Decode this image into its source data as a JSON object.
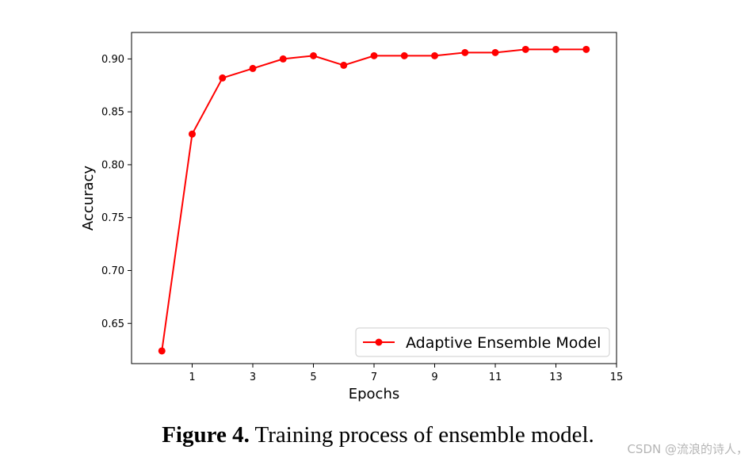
{
  "chart_data": {
    "type": "line",
    "xlabel": "Epochs",
    "ylabel": "Accuracy",
    "xlim": [
      -1,
      15
    ],
    "ylim": [
      0.612,
      0.925
    ],
    "xticks": [
      1,
      3,
      5,
      7,
      9,
      11,
      13,
      15
    ],
    "xtick_labels": [
      "1",
      "3",
      "5",
      "7",
      "9",
      "11",
      "13",
      "15"
    ],
    "yticks": [
      0.65,
      0.7,
      0.75,
      0.8,
      0.85,
      0.9
    ],
    "ytick_labels": [
      "0.65",
      "0.70",
      "0.75",
      "0.80",
      "0.85",
      "0.90"
    ],
    "grid": false,
    "legend_position": "lower-right",
    "series": [
      {
        "name": "Adaptive Ensemble Model",
        "color": "#ff0000",
        "marker": "circle",
        "x": [
          0,
          1,
          2,
          3,
          4,
          5,
          6,
          7,
          8,
          9,
          10,
          11,
          12,
          13,
          14
        ],
        "values": [
          0.624,
          0.829,
          0.882,
          0.891,
          0.9,
          0.903,
          0.894,
          0.903,
          0.903,
          0.903,
          0.906,
          0.906,
          0.909,
          0.909,
          0.909
        ]
      }
    ]
  },
  "caption": {
    "label": "Figure 4.",
    "text": " Training process of ensemble model."
  },
  "watermark": "CSDN @流浪的诗人，"
}
